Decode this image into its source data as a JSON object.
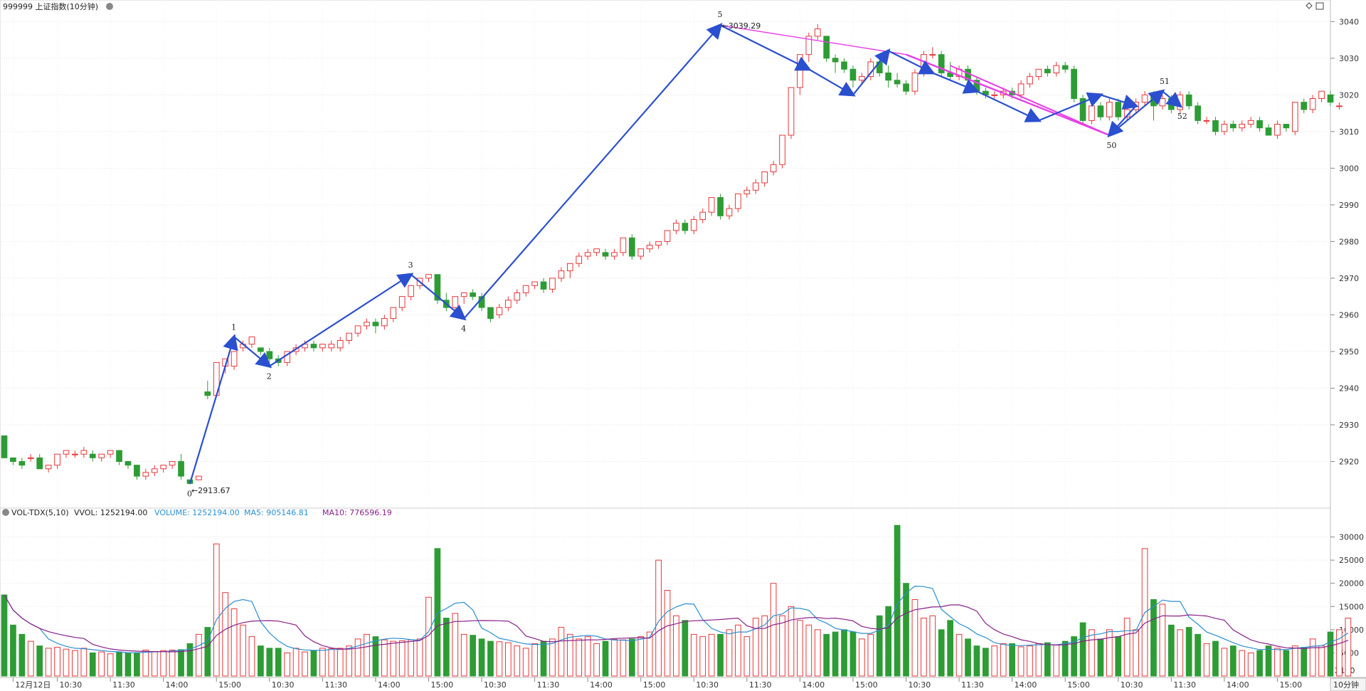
{
  "header": {
    "title": "999999 上证指数(10分钟)",
    "vol_indicator": "VOL-TDX(5,10)",
    "vvol": "VVOL: 1252194.00",
    "volume": "VOLUME: 1252194.00",
    "ma5": "MA5: 905146.81",
    "ma10": "MA10: 776596.19",
    "unit": "X100",
    "period": "10分钟"
  },
  "colors": {
    "up": "#e8363a",
    "down": "#2d9c34",
    "wave": "#2a4fcf",
    "trend": "#e83ee8",
    "ma5": "#2a8fd1",
    "ma10": "#8a1f8a",
    "grid": "#e4e4e4"
  },
  "icons": {
    "collapse": "collapse-circle-icon",
    "pin": "diamond-icon",
    "menu": "panel-icon"
  },
  "chart_data": {
    "type": "candlestick",
    "price_yticks": [
      2920,
      2930,
      2940,
      2950,
      2960,
      2970,
      2980,
      2990,
      3000,
      3010,
      3020,
      3030,
      3040
    ],
    "price_ylim": [
      2910,
      3042
    ],
    "volume_yticks": [
      5000,
      10000,
      15000,
      20000,
      25000,
      30000
    ],
    "volume_ylim": [
      0,
      33000
    ],
    "x_ticks": [
      {
        "label": "12月12日",
        "i": 1
      },
      {
        "label": "10:30",
        "i": 6
      },
      {
        "label": "11:30",
        "i": 12
      },
      {
        "label": "14:00",
        "i": 18
      },
      {
        "label": "15:00",
        "i": 24
      },
      {
        "label": "10:30",
        "i": 30
      },
      {
        "label": "11:30",
        "i": 36
      },
      {
        "label": "14:00",
        "i": 42
      },
      {
        "label": "15:00",
        "i": 48
      },
      {
        "label": "10:30",
        "i": 54
      },
      {
        "label": "11:30",
        "i": 60
      },
      {
        "label": "14:00",
        "i": 66
      },
      {
        "label": "15:00",
        "i": 72
      },
      {
        "label": "10:30",
        "i": 78
      },
      {
        "label": "11:30",
        "i": 84
      },
      {
        "label": "14:00",
        "i": 90
      },
      {
        "label": "15:00",
        "i": 96
      },
      {
        "label": "10:30",
        "i": 102
      },
      {
        "label": "11:30",
        "i": 108
      },
      {
        "label": "14:00",
        "i": 114
      },
      {
        "label": "15:00",
        "i": 120
      },
      {
        "label": "10:30",
        "i": 126
      },
      {
        "label": "11:30",
        "i": 132
      },
      {
        "label": "14:00",
        "i": 138
      },
      {
        "label": "15:00",
        "i": 144
      }
    ],
    "candles": [
      [
        2927,
        2921,
        2927,
        2921
      ],
      [
        2921,
        2920,
        2921,
        2919
      ],
      [
        2920,
        2919,
        2921,
        2918
      ],
      [
        2921,
        2921,
        2922,
        2920
      ],
      [
        2921,
        2918,
        2922,
        2918
      ],
      [
        2918,
        2919,
        2919,
        2917
      ],
      [
        2919,
        2922,
        2922,
        2918
      ],
      [
        2922,
        2923,
        2923,
        2921
      ],
      [
        2922,
        2922,
        2923,
        2921
      ],
      [
        2922,
        2923,
        2924,
        2921
      ],
      [
        2922,
        2921,
        2923,
        2920
      ],
      [
        2921,
        2922,
        2922,
        2920
      ],
      [
        2922,
        2923,
        2923,
        2921
      ],
      [
        2923,
        2920,
        2923,
        2919
      ],
      [
        2920,
        2919,
        2920,
        2918
      ],
      [
        2919,
        2916,
        2919,
        2915
      ],
      [
        2916,
        2917,
        2918,
        2915
      ],
      [
        2917,
        2918,
        2919,
        2916
      ],
      [
        2918,
        2919,
        2919,
        2917
      ],
      [
        2919,
        2920,
        2920,
        2918
      ],
      [
        2920,
        2916,
        2922,
        2915
      ],
      [
        2915,
        2914,
        2915,
        2913.67
      ],
      [
        2915,
        2916,
        2916,
        2915
      ],
      [
        2939,
        2938,
        2942,
        2937
      ],
      [
        2938,
        2947,
        2947,
        2938
      ],
      [
        2946,
        2948,
        2948,
        2944
      ],
      [
        2946,
        2950,
        2950,
        2945
      ],
      [
        2951,
        2952,
        2953,
        2950
      ],
      [
        2952,
        2954,
        2954,
        2951
      ],
      [
        2951,
        2950,
        2951,
        2949
      ],
      [
        2950,
        2948,
        2951,
        2947
      ],
      [
        2948,
        2947,
        2949,
        2946
      ],
      [
        2947,
        2950,
        2950,
        2946
      ],
      [
        2950,
        2951,
        2952,
        2949
      ],
      [
        2951,
        2952,
        2953,
        2950
      ],
      [
        2952,
        2951,
        2953,
        2950
      ],
      [
        2951,
        2952,
        2952,
        2950
      ],
      [
        2951,
        2952,
        2953,
        2950
      ],
      [
        2951,
        2953,
        2954,
        2950
      ],
      [
        2953,
        2955,
        2955,
        2952
      ],
      [
        2955,
        2957,
        2957,
        2954
      ],
      [
        2957,
        2958,
        2959,
        2956
      ],
      [
        2958,
        2957,
        2959,
        2955
      ],
      [
        2957,
        2959,
        2960,
        2956
      ],
      [
        2959,
        2962,
        2962,
        2958
      ],
      [
        2962,
        2965,
        2965,
        2961
      ],
      [
        2965,
        2968,
        2968,
        2964
      ],
      [
        2968,
        2970,
        2970,
        2967
      ],
      [
        2970,
        2971,
        2971,
        2969
      ],
      [
        2971,
        2964,
        2971,
        2963
      ],
      [
        2964,
        2962,
        2966,
        2961
      ],
      [
        2962,
        2965,
        2965,
        2961
      ],
      [
        2965,
        2966,
        2966,
        2963
      ],
      [
        2966,
        2965,
        2967,
        2964
      ],
      [
        2965,
        2962,
        2966,
        2961
      ],
      [
        2962,
        2959,
        2962,
        2958
      ],
      [
        2960,
        2962,
        2963,
        2959
      ],
      [
        2962,
        2964,
        2965,
        2961
      ],
      [
        2964,
        2966,
        2967,
        2963
      ],
      [
        2966,
        2968,
        2968,
        2965
      ],
      [
        2968,
        2969,
        2969,
        2967
      ],
      [
        2969,
        2967,
        2970,
        2966
      ],
      [
        2967,
        2970,
        2970,
        2966
      ],
      [
        2970,
        2972,
        2973,
        2969
      ],
      [
        2972,
        2974,
        2974,
        2970
      ],
      [
        2974,
        2976,
        2977,
        2973
      ],
      [
        2976,
        2977,
        2978,
        2975
      ],
      [
        2977,
        2978,
        2978,
        2976
      ],
      [
        2977,
        2976,
        2978,
        2975
      ],
      [
        2976,
        2977,
        2978,
        2975
      ],
      [
        2977,
        2981,
        2981,
        2976
      ],
      [
        2981,
        2976,
        2982,
        2975
      ],
      [
        2976,
        2978,
        2978,
        2975
      ],
      [
        2978,
        2979,
        2980,
        2977
      ],
      [
        2979,
        2980,
        2980,
        2978
      ],
      [
        2980,
        2983,
        2983,
        2979
      ],
      [
        2983,
        2985,
        2986,
        2982
      ],
      [
        2985,
        2983,
        2986,
        2982
      ],
      [
        2983,
        2986,
        2987,
        2982
      ],
      [
        2986,
        2988,
        2989,
        2985
      ],
      [
        2988,
        2992,
        2992,
        2987
      ],
      [
        2992,
        2987,
        2993,
        2986
      ],
      [
        2987,
        2989,
        2990,
        2986
      ],
      [
        2989,
        2993,
        2993,
        2988
      ],
      [
        2993,
        2994,
        2995,
        2992
      ],
      [
        2994,
        2996,
        2997,
        2993
      ],
      [
        2996,
        2999,
        2999,
        2995
      ],
      [
        2999,
        3001,
        3002,
        2998
      ],
      [
        3001,
        3009,
        3009,
        3000
      ],
      [
        3009,
        3022,
        3022,
        3008
      ],
      [
        3022,
        3031,
        3031,
        3020
      ],
      [
        3031,
        3036,
        3037,
        3029
      ],
      [
        3036,
        3038,
        3039.29,
        3035
      ],
      [
        3036,
        3030,
        3036,
        3029
      ],
      [
        3030,
        3029,
        3031,
        3026
      ],
      [
        3029,
        3027,
        3030,
        3026
      ],
      [
        3027,
        3024,
        3028,
        3022
      ],
      [
        3024,
        3025,
        3026,
        3023
      ],
      [
        3025,
        3029,
        3030,
        3024
      ],
      [
        3029,
        3026,
        3030,
        3025
      ],
      [
        3026,
        3024,
        3028,
        3022
      ],
      [
        3024,
        3023,
        3026,
        3022
      ],
      [
        3023,
        3021,
        3024,
        3020
      ],
      [
        3021,
        3026,
        3027,
        3020
      ],
      [
        3026,
        3031,
        3032,
        3025
      ],
      [
        3031,
        3031,
        3033,
        3030
      ],
      [
        3031,
        3026,
        3032,
        3025
      ],
      [
        3026,
        3025,
        3029,
        3024
      ],
      [
        3025,
        3027,
        3028,
        3024
      ],
      [
        3027,
        3024,
        3028,
        3023
      ],
      [
        3024,
        3021,
        3025,
        3020
      ],
      [
        3021,
        3020,
        3022,
        3019
      ],
      [
        3020,
        3020,
        3021,
        3019
      ],
      [
        3020,
        3021,
        3022,
        3019
      ],
      [
        3021,
        3020,
        3022,
        3019
      ],
      [
        3020,
        3023,
        3024,
        3019
      ],
      [
        3023,
        3025,
        3026,
        3022
      ],
      [
        3025,
        3027,
        3027,
        3024
      ],
      [
        3027,
        3026,
        3028,
        3025
      ],
      [
        3026,
        3028,
        3029,
        3025
      ],
      [
        3028,
        3027,
        3029,
        3026
      ],
      [
        3027,
        3019,
        3028,
        3018
      ],
      [
        3019,
        3013,
        3020,
        3012
      ],
      [
        3013,
        3017,
        3018,
        3012
      ],
      [
        3017,
        3014,
        3018,
        3013
      ],
      [
        3014,
        3018,
        3019,
        3013
      ],
      [
        3018,
        3014,
        3019,
        3013
      ],
      [
        3014,
        3016,
        3017,
        3013
      ],
      [
        3016,
        3018,
        3019,
        3015
      ],
      [
        3018,
        3020,
        3021,
        3017
      ],
      [
        3020,
        3017,
        3021,
        3013
      ],
      [
        3017,
        3019,
        3020,
        3016
      ],
      [
        3019,
        3016,
        3020,
        3015
      ],
      [
        3016,
        3020,
        3021,
        3015
      ],
      [
        3020,
        3017,
        3021,
        3016
      ],
      [
        3017,
        3013,
        3018,
        3012
      ],
      [
        3013,
        3013,
        3014,
        3012
      ],
      [
        3013,
        3010,
        3014,
        3009
      ],
      [
        3010,
        3012,
        3013,
        3009
      ],
      [
        3012,
        3011,
        3013,
        3010
      ],
      [
        3011,
        3012,
        3013,
        3010
      ],
      [
        3012,
        3013,
        3014,
        3011
      ],
      [
        3013,
        3011,
        3014,
        3010
      ],
      [
        3011,
        3009,
        3012,
        3009
      ],
      [
        3009,
        3012,
        3013,
        3008
      ],
      [
        3012,
        3011,
        3012,
        3010
      ],
      [
        3010,
        3018,
        3018,
        3009
      ],
      [
        3018,
        3016,
        3019,
        3015
      ],
      [
        3016,
        3019,
        3020,
        3015
      ],
      [
        3019,
        3021,
        3021,
        3018
      ],
      [
        3020,
        3018,
        3021,
        3017
      ],
      [
        3017,
        3017,
        3018,
        3016
      ]
    ],
    "volume": [
      17500,
      11000,
      9000,
      7500,
      6500,
      6000,
      6200,
      5800,
      5500,
      6000,
      5000,
      5200,
      4800,
      5200,
      5000,
      5000,
      5600,
      5300,
      5500,
      5600,
      5700,
      7000,
      9000,
      10500,
      28500,
      18000,
      14500,
      11000,
      8500,
      6500,
      6000,
      6000,
      5000,
      6000,
      5200,
      5500,
      6000,
      5900,
      6000,
      6500,
      8000,
      9000,
      8500,
      7800,
      7500,
      7600,
      7800,
      8000,
      17000,
      27500,
      12500,
      13500,
      9000,
      8800,
      8000,
      7500,
      7400,
      7200,
      6500,
      6000,
      7000,
      7500,
      8000,
      10500,
      9000,
      8000,
      8500,
      7000,
      7500,
      7900,
      7800,
      8000,
      8500,
      9500,
      25000,
      18500,
      13000,
      12000,
      9000,
      8500,
      9000,
      9000,
      10000,
      11000,
      8500,
      12500,
      13000,
      20000,
      13000,
      15000,
      12000,
      11000,
      10000,
      9000,
      9500,
      10000,
      9500,
      8000,
      9000,
      13000,
      15000,
      32500,
      20000,
      16500,
      12500,
      13000,
      10000,
      12000,
      9000,
      8000,
      6500,
      6000,
      6500,
      7000,
      7000,
      6300,
      6500,
      7000,
      7200,
      6700,
      7500,
      8500,
      11500,
      10000,
      8000,
      10000,
      8500,
      12500,
      10000,
      27500,
      16500,
      15500,
      11000,
      10000,
      10500,
      9000,
      7000,
      7500,
      6000,
      6500,
      5500,
      5000,
      5500,
      6500,
      6000,
      5500,
      6500,
      6200,
      8000,
      6500,
      9500,
      10000,
      12500
    ],
    "wave_points": [
      {
        "label": "0",
        "i": 21,
        "v": 2914
      },
      {
        "label": "1",
        "i": 26,
        "v": 2954
      },
      {
        "label": "2",
        "i": 30,
        "v": 2946
      },
      {
        "label": "3",
        "i": 46,
        "v": 2971
      },
      {
        "label": "4",
        "i": 52,
        "v": 2959
      },
      {
        "label": "5",
        "i": 81,
        "v": 3039.29
      },
      {
        "label": "50",
        "i": 125,
        "v": 3009
      },
      {
        "label": "51",
        "i": 131,
        "v": 3021
      },
      {
        "label": "52",
        "i": 133,
        "v": 3017
      }
    ],
    "price_annotations": [
      {
        "text": "3039.29",
        "i": 81,
        "v": 3039.29
      },
      {
        "text": "2913.67",
        "i": 21,
        "v": 2913.67
      }
    ]
  }
}
